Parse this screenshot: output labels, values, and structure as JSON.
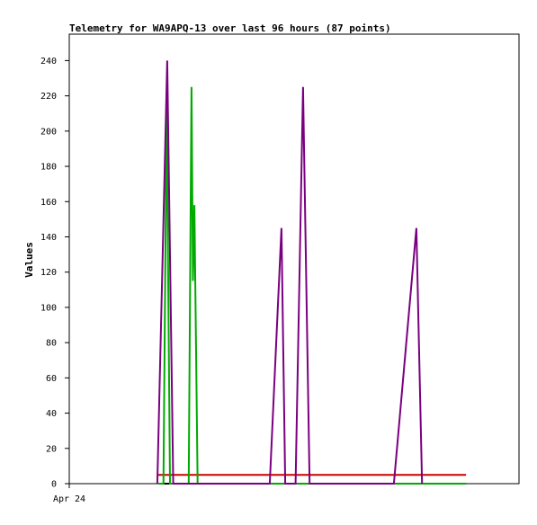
{
  "chart_data": {
    "type": "line",
    "title": "Telemetry for WA9APQ-13 over last 96 hours (87 points)",
    "xlabel": "",
    "ylabel": "Values",
    "x_ticks": [
      "Apr 24"
    ],
    "y_ticks": [
      "0",
      "20",
      "40",
      "60",
      "80",
      "100",
      "120",
      "140",
      "160",
      "180",
      "200",
      "220",
      "240"
    ],
    "ylim": [
      0,
      255
    ],
    "xlim": [
      0,
      96
    ],
    "grid": false,
    "legend": "none",
    "series": [
      {
        "color": "#cc0000",
        "points": [
          [
            19.0,
            5
          ],
          [
            84.7,
            5
          ]
        ]
      },
      {
        "color": "#000000",
        "points": [
          [
            19.0,
            0
          ],
          [
            84.7,
            0
          ]
        ]
      },
      {
        "color": "#00aa00",
        "points": [
          [
            19.0,
            0
          ],
          [
            20.1,
            0
          ],
          [
            20.8,
            215
          ],
          [
            21.5,
            0
          ],
          [
            25.5,
            0
          ],
          [
            26.1,
            225
          ],
          [
            26.4,
            115
          ],
          [
            26.7,
            158
          ],
          [
            27.4,
            0
          ],
          [
            84.7,
            0
          ]
        ]
      },
      {
        "color": "#7a0080",
        "points": [
          [
            18.8,
            0
          ],
          [
            20.9,
            240
          ],
          [
            22.2,
            0
          ],
          [
            42.8,
            0
          ],
          [
            45.3,
            145
          ],
          [
            46.1,
            0
          ],
          [
            48.3,
            0
          ],
          [
            49.9,
            225
          ],
          [
            51.3,
            0
          ],
          [
            69.3,
            0
          ],
          [
            74.1,
            145
          ],
          [
            75.3,
            0
          ]
        ]
      }
    ]
  }
}
